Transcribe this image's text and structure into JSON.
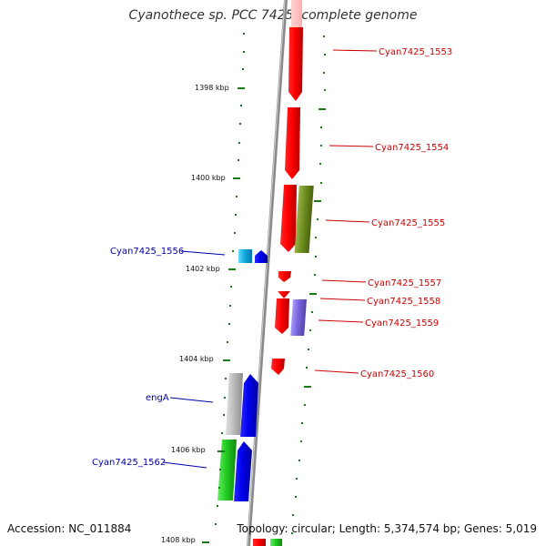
{
  "title": "Cyanothece sp. PCC 7425, complete genome",
  "footer": {
    "accession": "Accession: NC_011884",
    "topology": "Topology: circular; Length: 5,374,574 bp; Genes: 5,019"
  },
  "colors": {
    "backbone": "#8a8a8a",
    "tick": "#1a7a1a",
    "forward_gene": "#ff0000",
    "reverse_gene": "#0000e0",
    "rna_gene": "#22cc22",
    "olive_gene": "#6f8f1f",
    "cyan_gene": "#11aadd",
    "purple_gene": "#7766dd",
    "grey_gene": "#b0b0b0",
    "label_red": "#cc0000",
    "label_blue": "#0000aa"
  },
  "scale_labels": [
    {
      "kbp": 1398,
      "text": "1398 kbp"
    },
    {
      "kbp": 1400,
      "text": "1400 kbp"
    },
    {
      "kbp": 1402,
      "text": "1402 kbp"
    },
    {
      "kbp": 1404,
      "text": "1404 kbp"
    },
    {
      "kbp": 1406,
      "text": "1406 kbp"
    },
    {
      "kbp": 1408,
      "text": "1408 kbp"
    }
  ],
  "gene_labels": [
    {
      "name": "Cyan7425_1553",
      "side": "right",
      "color": "red"
    },
    {
      "name": "Cyan7425_1554",
      "side": "right",
      "color": "red"
    },
    {
      "name": "Cyan7425_1555",
      "side": "right",
      "color": "red"
    },
    {
      "name": "Cyan7425_1556",
      "side": "left",
      "color": "blue"
    },
    {
      "name": "Cyan7425_1557",
      "side": "right",
      "color": "red"
    },
    {
      "name": "Cyan7425_1558",
      "side": "right",
      "color": "red"
    },
    {
      "name": "Cyan7425_1559",
      "side": "right",
      "color": "red"
    },
    {
      "name": "Cyan7425_1560",
      "side": "right",
      "color": "red"
    },
    {
      "name": "engA",
      "side": "left",
      "color": "blue"
    },
    {
      "name": "Cyan7425_1562",
      "side": "left",
      "color": "blue"
    }
  ]
}
